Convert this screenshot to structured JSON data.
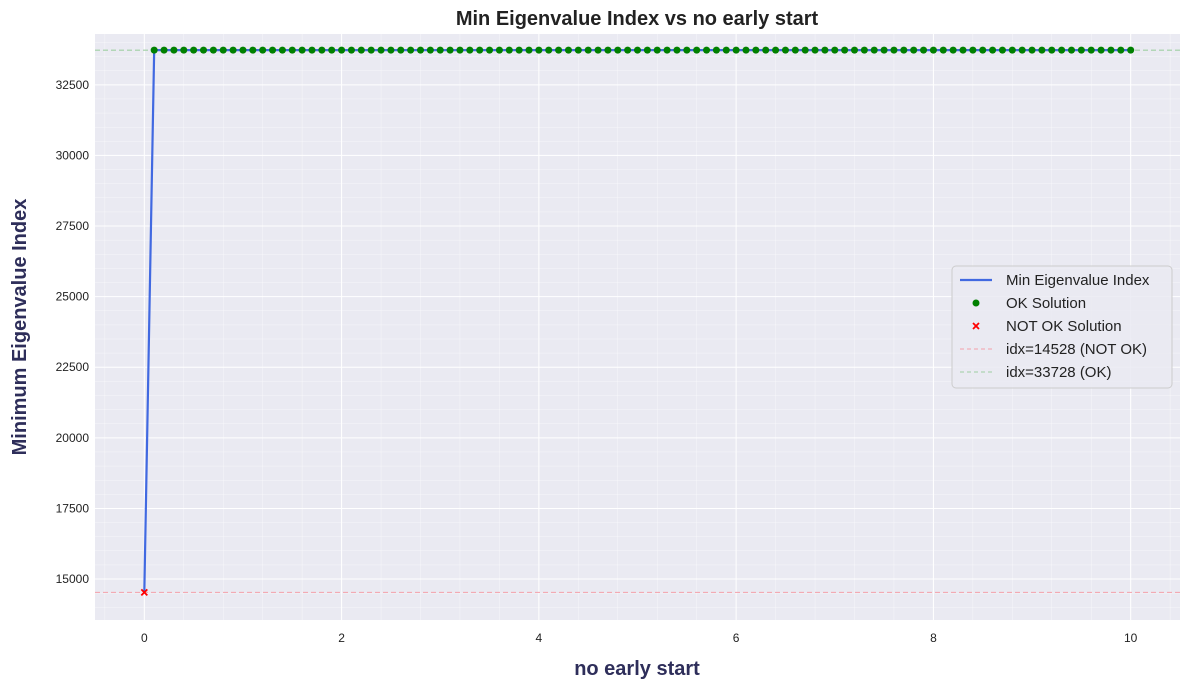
{
  "chart_data": {
    "type": "line",
    "title": "Min Eigenvalue Index vs no early start",
    "xlabel": "no early start",
    "ylabel": "Minimum Eigenvalue Index",
    "xlim": [
      -0.5,
      10.5
    ],
    "ylim": [
      13550,
      34300
    ],
    "x_ticks": [
      "0",
      "2",
      "4",
      "6",
      "8",
      "10"
    ],
    "x_tick_values": [
      0,
      2,
      4,
      6,
      8,
      10
    ],
    "y_ticks": [
      "15000",
      "17500",
      "20000",
      "22500",
      "25000",
      "27500",
      "30000",
      "32500"
    ],
    "y_tick_values": [
      15000,
      17500,
      20000,
      22500,
      25000,
      27500,
      30000,
      32500
    ],
    "grid": true,
    "legend_position": "center-right",
    "x_start": 0,
    "x_end": 10,
    "x_step": 0.1,
    "not_ok_value": 14528,
    "ok_value": 33728,
    "not_ok_x": [
      0
    ],
    "series": [
      {
        "name": "Min Eigenvalue Index",
        "kind": "line",
        "color": "#4169e1"
      },
      {
        "name": "OK Solution",
        "kind": "scatter-circle",
        "color": "#008000"
      },
      {
        "name": "NOT OK Solution",
        "kind": "scatter-x",
        "color": "#ff0000"
      }
    ],
    "reference_lines": [
      {
        "label": "idx=14528 (NOT OK)",
        "value": 14528,
        "color": "#f4a0aa"
      },
      {
        "label": "idx=33728 (OK)",
        "value": 33728,
        "color": "#9fcfa3"
      }
    ],
    "colors": {
      "plot_background": "#eaeaf2",
      "grid": "#ffffff"
    }
  }
}
